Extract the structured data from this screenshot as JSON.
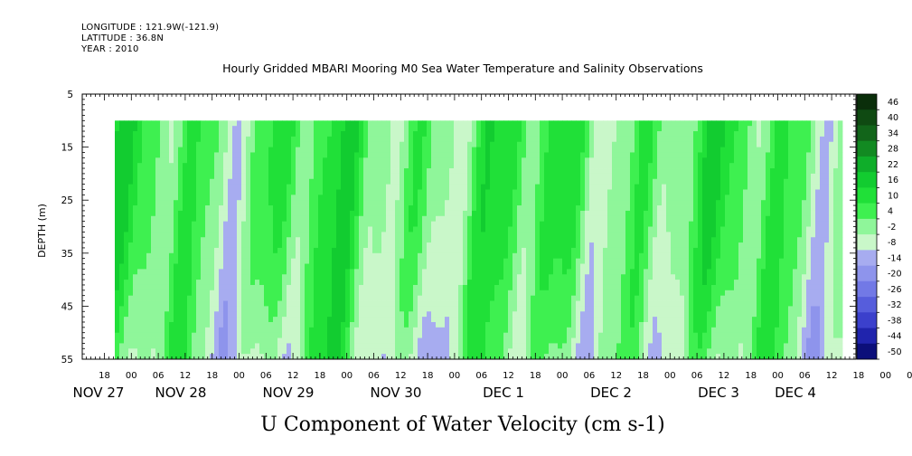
{
  "header": {
    "longitude": "LONGITUDE : 121.9W(-121.9)",
    "latitude": "LATITUDE : 36.8N",
    "year": "YEAR : 2010",
    "title": "Hourly Gridded MBARI Mooring M0 Sea Water Temperature and Salinity Observations"
  },
  "chart_data": {
    "type": "heatmap",
    "title": "Hourly Gridded MBARI Mooring M0 Sea Water Temperature and Salinity Observations",
    "xlabel": "U Component of Water Velocity (cm s-1)",
    "ylabel": "DEPTH (m)",
    "y_axis": {
      "ticks": [
        5,
        15,
        25,
        35,
        45,
        55
      ],
      "range": [
        5,
        55
      ],
      "inverted": true
    },
    "data_depth_range": [
      10,
      55
    ],
    "x_axis": {
      "hour_ticks": [
        "18",
        "00",
        "06",
        "12",
        "18",
        "00",
        "06",
        "12",
        "18",
        "00",
        "06",
        "12",
        "18",
        "00",
        "06",
        "12",
        "18",
        "00",
        "06",
        "12",
        "18",
        "00",
        "06",
        "12",
        "18",
        "00",
        "06",
        "12",
        "18",
        "00",
        "06",
        "12"
      ],
      "date_labels": [
        "NOV 27",
        "NOV 28",
        "NOV 29",
        "NOV 30",
        "DEC  1",
        "DEC  2",
        "DEC  3",
        "DEC  4"
      ]
    },
    "colorbar": {
      "ticks": [
        46,
        40,
        34,
        28,
        22,
        16,
        10,
        4,
        -2,
        -8,
        -14,
        -20,
        -26,
        -32,
        -38,
        -44,
        -50
      ],
      "colors": [
        "#0a2e0a",
        "#0f4a12",
        "#12651a",
        "#128a22",
        "#0fae2a",
        "#12cc30",
        "#20e038",
        "#3ef050",
        "#8ff69a",
        "#c9f7c9",
        "#a7acf0",
        "#8e94ec",
        "#7279e6",
        "#565ddc",
        "#3b40cc",
        "#2024ad",
        "#0c0f7a"
      ]
    },
    "notes": "Alternating bands of positive (green) and negative (blue) U velocity; strongest negative values near 45-55 m depth."
  }
}
